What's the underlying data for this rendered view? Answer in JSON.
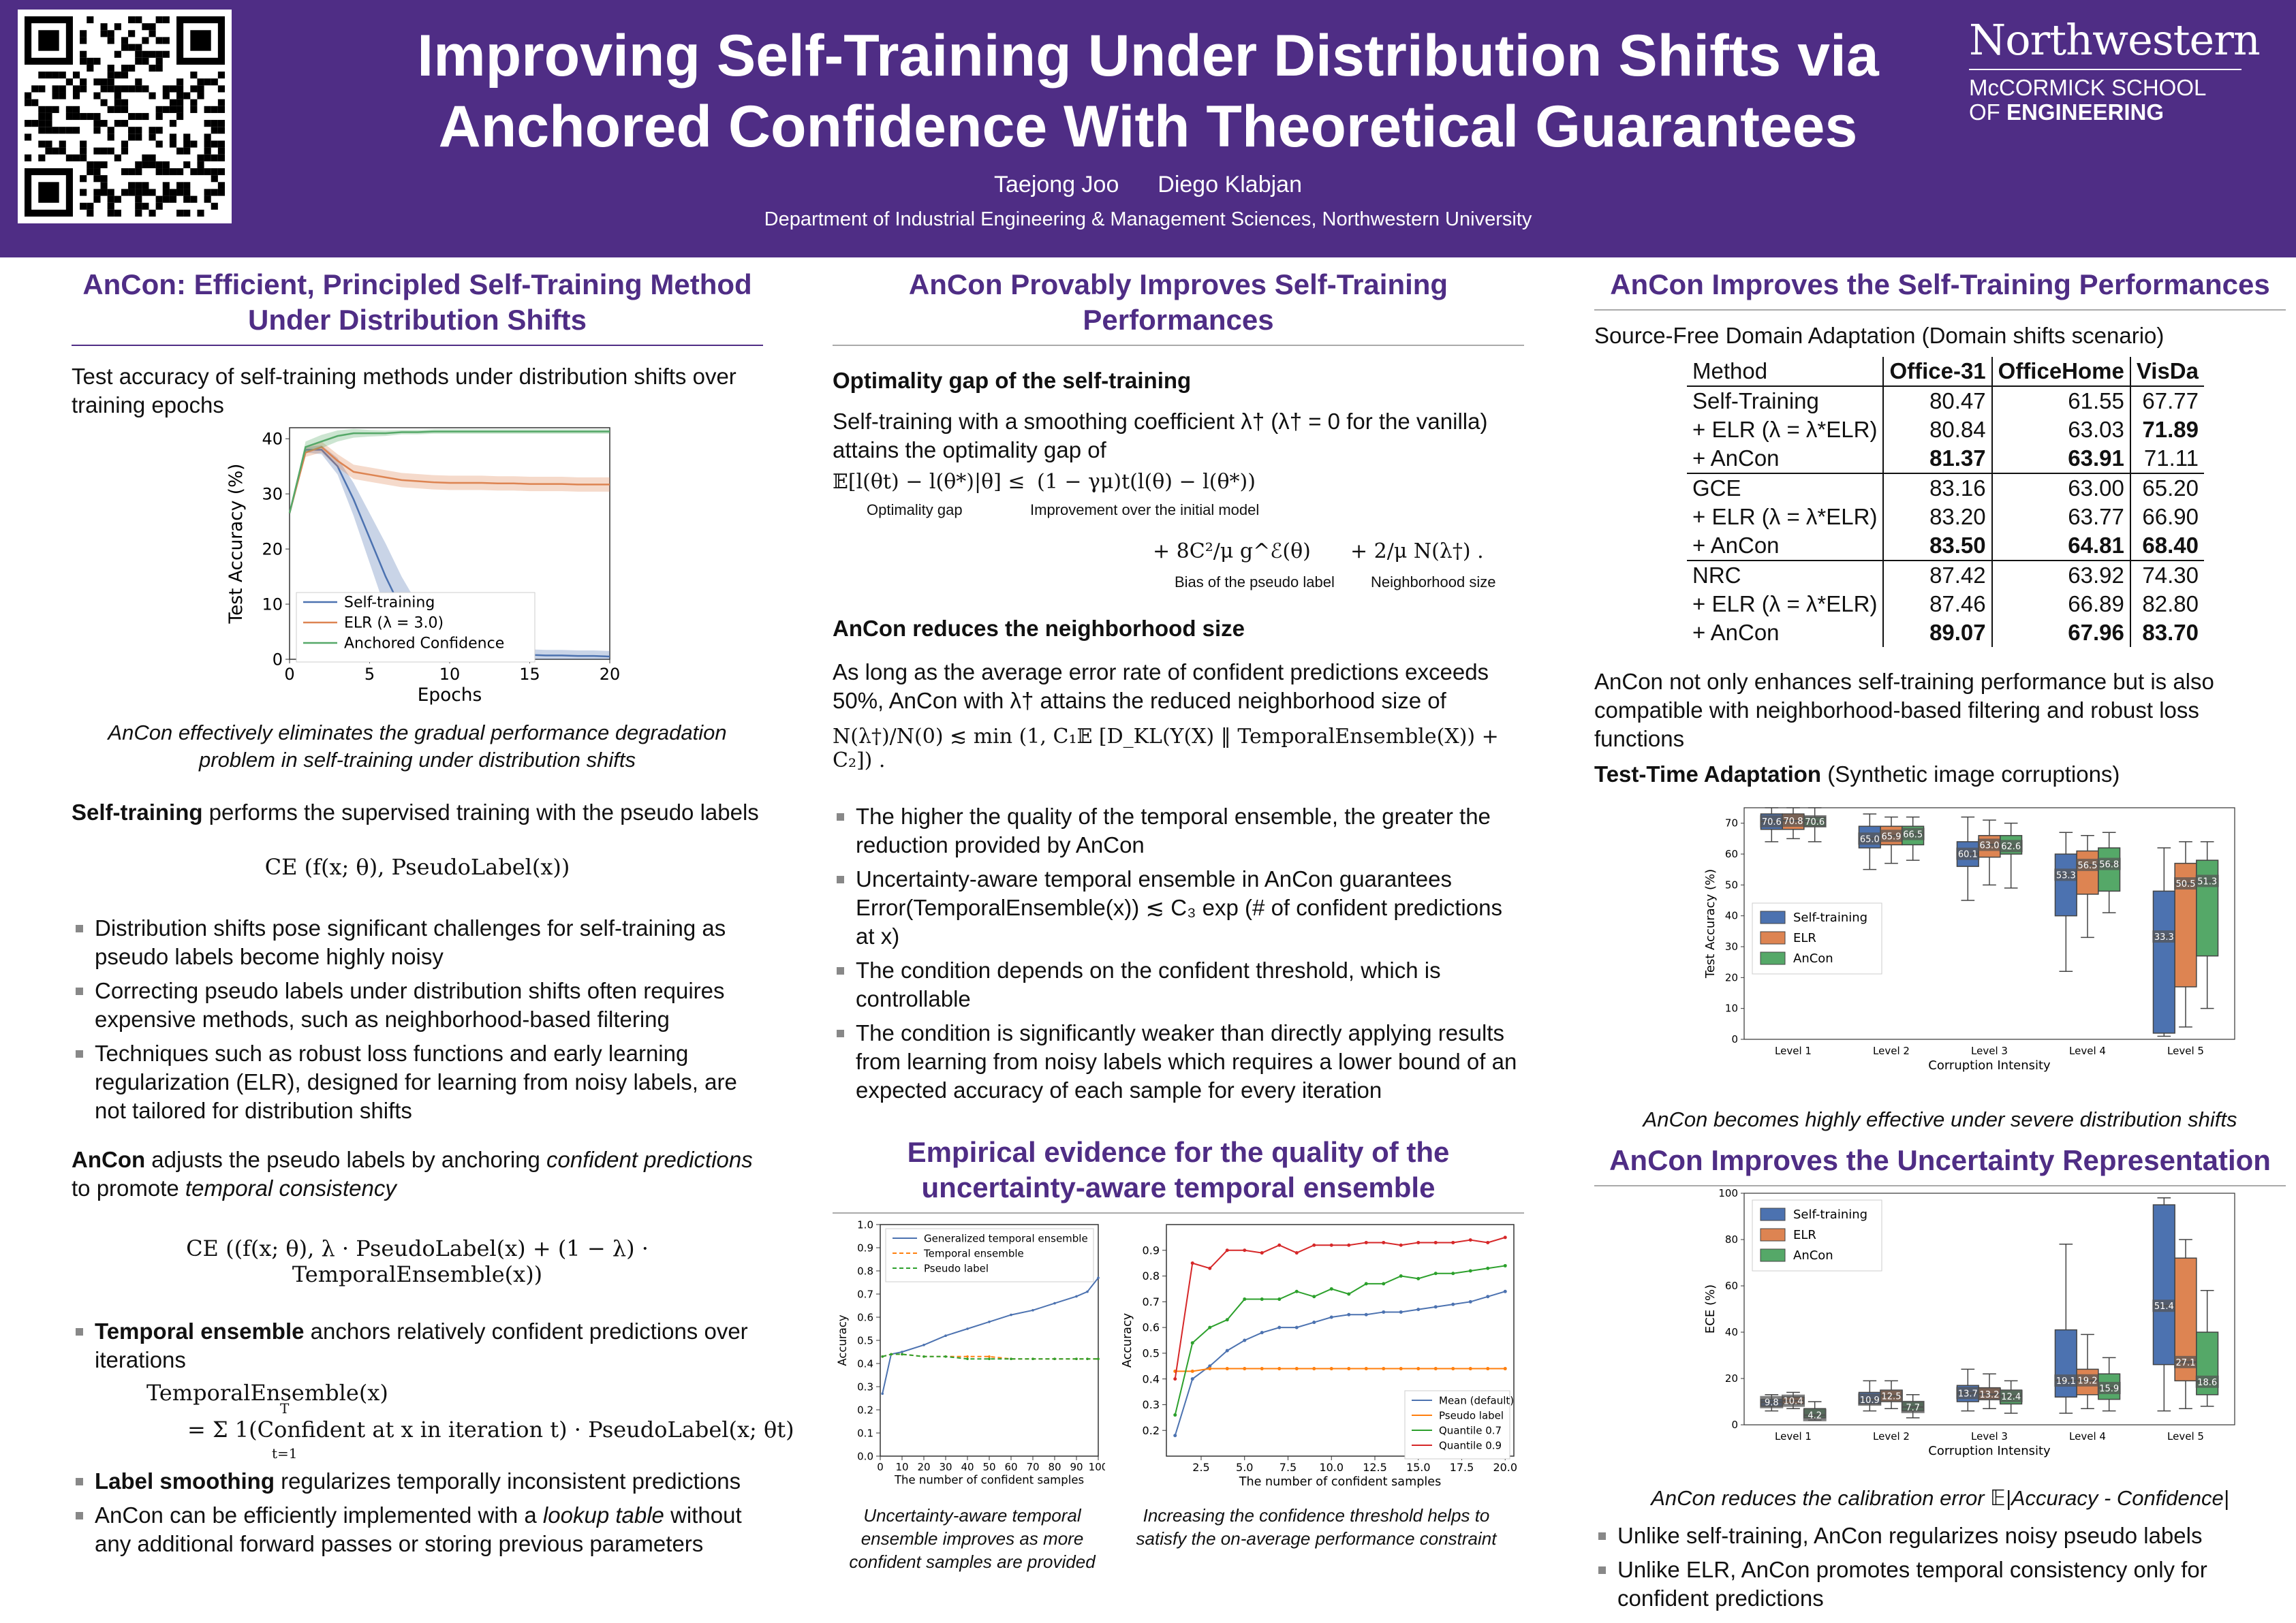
{
  "header": {
    "title_line1": "Improving Self-Training Under Distribution Shifts via",
    "title_line2": "Anchored Confidence With Theoretical Guarantees",
    "author1": "Taejong Joo",
    "author2": "Diego Klabjan",
    "department": "Department of Industrial Engineering & Management Sciences, Northwestern University",
    "logo_name": "Northwestern",
    "logo_school1": "McCORMICK SCHOOL",
    "logo_school2_prefix": "OF ",
    "logo_school2_bold": "ENGINEERING"
  },
  "left": {
    "title": "AnCon: Efficient, Principled Self-Training Method Under Distribution Shifts",
    "fig_heading": "Test accuracy of self-training methods under distribution shifts over training epochs",
    "fig_caption": "AnCon effectively eliminates the gradual performance degradation problem in self-training under distribution shifts",
    "st_bold": "Self-training",
    "st_rest": " performs the supervised training with the pseudo labels",
    "eq_ce": "CE (f(x; θ), PseudoLabel(x))",
    "bullets1": [
      "Distribution shifts pose significant challenges for self-training as pseudo labels become highly noisy",
      "Correcting pseudo labels under distribution shifts often requires expensive methods, such as neighborhood-based filtering",
      "Techniques such as robust loss functions and early learning regularization (ELR), designed for learning from noisy labels, are not tailored for distribution shifts"
    ],
    "ancon_bold": "AnCon",
    "ancon_rest1": " adjusts the pseudo labels by anchoring ",
    "ancon_it1": "confident predictions",
    "ancon_rest2": " to promote ",
    "ancon_it2": "temporal consistency",
    "eq_ancon": "CE ((f(x; θ), λ · PseudoLabel(x) + (1 − λ) · TemporalEnsemble(x))",
    "te_bold": "Temporal ensemble",
    "te_rest": " anchors relatively confident predictions over iterations",
    "eq_te1": "TemporalEnsemble(x)",
    "eq_te2": "= Σ 1(Confident at x in iteration t) · PseudoLabel(x; θt)",
    "eq_te_sum_top": "T",
    "eq_te_sum_bot": "t=1",
    "ls_bold": "Label smoothing",
    "ls_rest": " regularizes temporally inconsistent predictions",
    "lookup_rest1": "AnCon can be efficiently implemented with a ",
    "lookup_it": "lookup table",
    "lookup_rest2": " without any additional forward passes or storing previous parameters"
  },
  "middle": {
    "title": "AnCon Provably Improves Self-Training Performances",
    "sub1": "Optimality gap of the self-training",
    "p1": "Self-training with a smoothing coefficient λ† (λ† = 0 for the vanilla) attains the optimality gap of",
    "eq_gap_lhs": "𝔼[l(θt) − l(θ*)|θ] ≤",
    "eq_gap_lhs_label": "Optimality gap",
    "eq_gap_rhs": "(1 − γμ)t(l(θ) − l(θ*))",
    "eq_gap_rhs_label": "Improvement over the initial model",
    "eq_bias": "+   8C²/μ g^ℰ(θ)",
    "eq_bias_label": "Bias of the pseudo label",
    "eq_nb": "+   2/μ N(λ†)  .",
    "eq_nb_label": "Neighborhood size",
    "sub2": "AnCon reduces the neighborhood size",
    "p2": "As long as the average error rate of confident predictions exceeds 50%, AnCon with λ† attains the reduced neighborhood size of",
    "eq_nbsize": "N(λ†)/N(0) ≲ min (1, C₁𝔼 [D_KL(Y(X) ‖ TemporalEnsemble(X)) + C₂]) .",
    "bullets": [
      "The higher the quality of the temporal ensemble, the greater the reduction provided by AnCon",
      "Uncertainty-aware temporal ensemble in AnCon guarantees Error(TemporalEnsemble(x)) ≲ C₃ exp (# of confident predictions at x)",
      "The condition depends on the confident threshold, which is controllable",
      "The condition is significantly weaker than directly applying results from learning from noisy labels which requires a lower bound of an expected accuracy of each sample for every iteration"
    ],
    "title2": "Empirical evidence for the quality of the uncertainty-aware temporal ensemble",
    "cap_a": "Uncertainty-aware temporal ensemble improves as more confident samples are provided",
    "cap_b": "Increasing the confidence threshold helps to satisfy the on-average performance constraint"
  },
  "right": {
    "title": "AnCon Improves the Self-Training Performances",
    "sfda_bold": "Source-Free Domain Adaptation",
    "sfda_rest": " (Domain shifts scenario)",
    "table": {
      "headers": [
        "Method",
        "Office-31",
        "OfficeHome",
        "VisDa"
      ],
      "groups": [
        [
          {
            "m": "Self-Training",
            "a": "80.47",
            "b": "61.55",
            "c": "67.77",
            "bold": []
          },
          {
            "m": "+ ELR (λ = λ*ELR)",
            "a": "80.84",
            "b": "63.03",
            "c": "71.89",
            "bold": [
              "c"
            ]
          },
          {
            "m": "+ AnCon",
            "a": "81.37",
            "b": "63.91",
            "c": "71.11",
            "bold": [
              "a",
              "b"
            ]
          }
        ],
        [
          {
            "m": "GCE",
            "a": "83.16",
            "b": "63.00",
            "c": "65.20",
            "bold": []
          },
          {
            "m": "+ ELR (λ = λ*ELR)",
            "a": "83.20",
            "b": "63.77",
            "c": "66.90",
            "bold": []
          },
          {
            "m": "+ AnCon",
            "a": "83.50",
            "b": "64.81",
            "c": "68.40",
            "bold": [
              "a",
              "b",
              "c"
            ]
          }
        ],
        [
          {
            "m": "NRC",
            "a": "87.42",
            "b": "63.92",
            "c": "74.30",
            "bold": []
          },
          {
            "m": "+ ELR (λ = λ*ELR)",
            "a": "87.46",
            "b": "66.89",
            "c": "82.80",
            "bold": []
          },
          {
            "m": "+ AnCon",
            "a": "89.07",
            "b": "67.96",
            "c": "83.70",
            "bold": [
              "a",
              "b",
              "c"
            ]
          }
        ]
      ]
    },
    "p_compat": "AnCon not only enhances self-training performance but is also compatible with neighborhood-based filtering and robust loss functions",
    "tta_bold": "Test-Time Adaptation",
    "tta_rest": " (Synthetic image corruptions)",
    "cap_tta": "AnCon becomes highly effective under severe distribution shifts",
    "title2": "AnCon Improves the Uncertainty Representation",
    "cap_ece": "AnCon reduces the calibration error 𝔼|Accuracy - Confidence|",
    "bullets": [
      "Unlike self-training, AnCon regularizes noisy pseudo labels",
      "Unlike ELR, AnCon promotes temporal consistency only for confident predictions"
    ]
  },
  "chart_data": [
    {
      "type": "line",
      "xlabel": "Epochs",
      "ylabel": "Test Accuracy (%)",
      "xlim": [
        0,
        20
      ],
      "ylim": [
        0,
        42
      ],
      "xticks": [
        "0",
        "5",
        "10",
        "15",
        "20"
      ],
      "yticks": [
        "0",
        "10",
        "20",
        "30",
        "40"
      ],
      "x": [
        0,
        1,
        2,
        3,
        4,
        5,
        6,
        7,
        8,
        9,
        10,
        11,
        12,
        13,
        14,
        15,
        16,
        17,
        18,
        19,
        20
      ],
      "legend_placement": "bottom-left",
      "series": [
        {
          "name": "Self-training",
          "color": "#4c72b0",
          "values": [
            26.5,
            38,
            38,
            35,
            29,
            22,
            15,
            9,
            5,
            3,
            2,
            1.5,
            1.2,
            1,
            0.9,
            0.8,
            0.7,
            0.7,
            0.6,
            0.6,
            0.5
          ]
        },
        {
          "name": "ELR (λ = 3.0)",
          "color": "#dd8452",
          "values": [
            26.5,
            37.5,
            38.5,
            36,
            34,
            33.5,
            33,
            32.5,
            32.3,
            32.1,
            32,
            32,
            32,
            31.9,
            31.9,
            31.8,
            31.8,
            31.8,
            31.7,
            31.7,
            31.7
          ]
        },
        {
          "name": "Anchored Confidence",
          "color": "#55a868",
          "values": [
            26.5,
            38.5,
            39.5,
            40.5,
            41,
            41,
            41,
            41.2,
            41.2,
            41.3,
            41.3,
            41.3,
            41.3,
            41.3,
            41.3,
            41.3,
            41.3,
            41.3,
            41.3,
            41.3,
            41.3
          ]
        }
      ]
    },
    {
      "type": "line",
      "xlabel": "The number of confident samples",
      "ylabel": "Accuracy",
      "xlim": [
        0,
        100
      ],
      "ylim": [
        0.0,
        1.0
      ],
      "xticks": [
        "0",
        "10",
        "20",
        "30",
        "40",
        "50",
        "60",
        "70",
        "80",
        "90",
        "100"
      ],
      "yticks": [
        "0.0",
        "0.1",
        "0.2",
        "0.3",
        "0.4",
        "0.5",
        "0.6",
        "0.7",
        "0.8",
        "0.9",
        "1.0"
      ],
      "x": [
        1,
        5,
        10,
        20,
        30,
        40,
        50,
        60,
        70,
        80,
        90,
        95,
        100
      ],
      "legend_placement": "top-left",
      "series": [
        {
          "name": "Generalized temporal ensemble",
          "color": "#4c72b0",
          "values": [
            0.27,
            0.44,
            0.45,
            0.48,
            0.52,
            0.55,
            0.58,
            0.61,
            0.63,
            0.66,
            0.69,
            0.71,
            0.77
          ]
        },
        {
          "name": "Temporal ensemble",
          "color": "#ff7f0e",
          "values": [
            0.43,
            0.44,
            0.44,
            0.43,
            0.43,
            0.43,
            0.43,
            0.42,
            0.42,
            0.42,
            0.42,
            0.42,
            0.42
          ]
        },
        {
          "name": "Pseudo label",
          "color": "#2ca02c",
          "values": [
            0.43,
            0.44,
            0.44,
            0.43,
            0.43,
            0.42,
            0.42,
            0.42,
            0.42,
            0.42,
            0.42,
            0.42,
            0.42
          ]
        }
      ]
    },
    {
      "type": "line",
      "xlabel": "The number of confident samples",
      "ylabel": "Accuracy",
      "xlim": [
        0.5,
        20.5
      ],
      "ylim": [
        0.1,
        1.0
      ],
      "xticks": [
        "2.5",
        "5.0",
        "7.5",
        "10.0",
        "12.5",
        "15.0",
        "17.5",
        "20.0"
      ],
      "yticks": [
        "0.2",
        "0.3",
        "0.4",
        "0.5",
        "0.6",
        "0.7",
        "0.8",
        "0.9"
      ],
      "x": [
        1,
        2,
        3,
        4,
        5,
        6,
        7,
        8,
        9,
        10,
        11,
        12,
        13,
        14,
        15,
        16,
        17,
        18,
        19,
        20
      ],
      "legend_placement": "bottom-right",
      "series": [
        {
          "name": "Mean (default)",
          "color": "#4c72b0",
          "values": [
            0.18,
            0.4,
            0.45,
            0.51,
            0.55,
            0.58,
            0.6,
            0.6,
            0.62,
            0.64,
            0.65,
            0.65,
            0.66,
            0.66,
            0.67,
            0.68,
            0.69,
            0.7,
            0.72,
            0.74
          ]
        },
        {
          "name": "Pseudo label",
          "color": "#ff7f0e",
          "values": [
            0.43,
            0.43,
            0.44,
            0.44,
            0.44,
            0.44,
            0.44,
            0.44,
            0.44,
            0.44,
            0.44,
            0.44,
            0.44,
            0.44,
            0.44,
            0.44,
            0.44,
            0.44,
            0.44,
            0.44
          ]
        },
        {
          "name": "Quantile 0.7",
          "color": "#2ca02c",
          "values": [
            0.26,
            0.54,
            0.6,
            0.63,
            0.71,
            0.71,
            0.71,
            0.74,
            0.72,
            0.75,
            0.73,
            0.77,
            0.77,
            0.8,
            0.79,
            0.81,
            0.81,
            0.82,
            0.83,
            0.84
          ]
        },
        {
          "name": "Quantile 0.9",
          "color": "#d62728",
          "values": [
            0.4,
            0.85,
            0.83,
            0.9,
            0.9,
            0.89,
            0.92,
            0.89,
            0.92,
            0.92,
            0.92,
            0.93,
            0.93,
            0.92,
            0.93,
            0.93,
            0.93,
            0.94,
            0.93,
            0.95
          ]
        }
      ]
    },
    {
      "type": "box",
      "xlabel": "Corruption Intensity",
      "ylabel": "Test Accuracy (%)",
      "ylim": [
        0,
        75
      ],
      "yticks": [
        "0",
        "10",
        "20",
        "30",
        "40",
        "50",
        "60",
        "70"
      ],
      "categories": [
        "Level 1",
        "Level 2",
        "Level 3",
        "Level 4",
        "Level 5"
      ],
      "legend_placement": "center-left",
      "series": [
        {
          "name": "Self-training",
          "color": "#4c72b0",
          "medians": [
            70.6,
            65.0,
            60.1,
            53.3,
            33.3
          ],
          "q1": [
            68,
            62,
            56,
            40,
            2
          ],
          "q3": [
            73,
            69,
            64,
            60,
            48
          ],
          "wlo": [
            64,
            55,
            45,
            22,
            1
          ],
          "whi": [
            75,
            73,
            72,
            67,
            62
          ],
          "labels": [
            "70.6",
            "65.0",
            "60.1",
            "53.3",
            "33.3"
          ]
        },
        {
          "name": "ELR",
          "color": "#dd8452",
          "medians": [
            70.8,
            65.9,
            63.0,
            56.5,
            50.5
          ],
          "q1": [
            68,
            63,
            59,
            47,
            17
          ],
          "q3": [
            73,
            69,
            66,
            61,
            57
          ],
          "wlo": [
            65,
            57,
            50,
            33,
            4
          ],
          "whi": [
            75,
            72,
            71,
            66,
            64
          ],
          "labels": [
            "70.8",
            "65.9",
            "63.0",
            "56.5",
            "50.5"
          ]
        },
        {
          "name": "AnCon",
          "color": "#55a868",
          "medians": [
            70.6,
            66.5,
            62.6,
            56.8,
            51.3
          ],
          "q1": [
            69,
            63,
            60,
            48,
            27
          ],
          "q3": [
            72,
            69,
            66,
            62,
            58
          ],
          "wlo": [
            64,
            58,
            49,
            41,
            10
          ],
          "whi": [
            75,
            72,
            70,
            67,
            64
          ],
          "labels": [
            "70.6",
            "66.5",
            "62.6",
            "56.8",
            "51.3"
          ]
        }
      ]
    },
    {
      "type": "box",
      "xlabel": "Corruption Intensity",
      "ylabel": "ECE (%)",
      "ylim": [
        0,
        100
      ],
      "yticks": [
        "0",
        "20",
        "40",
        "60",
        "80",
        "100"
      ],
      "categories": [
        "Level 1",
        "Level 2",
        "Level 3",
        "Level 4",
        "Level 5"
      ],
      "legend_placement": "top-left",
      "series": [
        {
          "name": "Self-training",
          "color": "#4c72b0",
          "medians": [
            9.8,
            10.9,
            13.7,
            19.1,
            51.4
          ],
          "q1": [
            8,
            9,
            10,
            12,
            26
          ],
          "q3": [
            11,
            14,
            17,
            41,
            95
          ],
          "wlo": [
            6,
            6,
            6,
            5,
            6
          ],
          "whi": [
            13,
            19,
            24,
            78,
            98
          ],
          "labels": [
            "9.8",
            "10.9",
            "13.7",
            "19.1",
            "51.4"
          ]
        },
        {
          "name": "ELR",
          "color": "#dd8452",
          "medians": [
            10.4,
            12.5,
            13.2,
            19.2,
            27.1
          ],
          "q1": [
            9,
            10,
            11,
            13,
            19
          ],
          "q3": [
            12,
            15,
            16,
            24,
            72
          ],
          "wlo": [
            7,
            7,
            7,
            7,
            7
          ],
          "whi": [
            14,
            19,
            22,
            39,
            80
          ],
          "labels": [
            "10.4",
            "12.5",
            "13.2",
            "19.2",
            "27.1"
          ]
        },
        {
          "name": "AnCon",
          "color": "#55a868",
          "medians": [
            4.2,
            7.7,
            12.4,
            15.9,
            18.6
          ],
          "q1": [
            3,
            6,
            9,
            11,
            13
          ],
          "q3": [
            7,
            10,
            15,
            22,
            40
          ],
          "wlo": [
            2,
            3,
            5,
            6,
            8
          ],
          "whi": [
            10,
            13,
            19,
            29,
            58
          ],
          "labels": [
            "4.2",
            "7.7",
            "12.4",
            "15.9",
            "18.6"
          ]
        }
      ]
    }
  ]
}
